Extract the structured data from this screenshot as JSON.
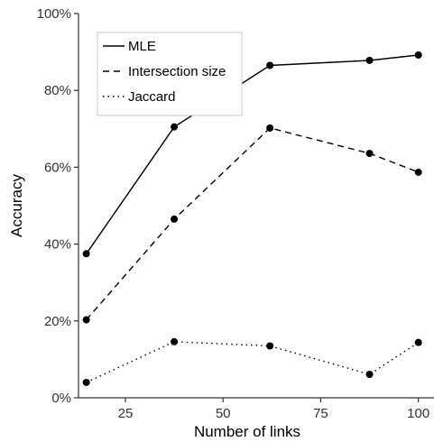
{
  "chart_data": {
    "type": "line",
    "title": "",
    "xlabel": "Number of links",
    "ylabel": "Accuracy",
    "x": [
      15,
      37.5,
      62,
      87.5,
      100
    ],
    "xlim": [
      13,
      104
    ],
    "ylim": [
      0,
      100
    ],
    "xticks": [
      25,
      50,
      75,
      100
    ],
    "xtick_labels": [
      "25",
      "50",
      "75",
      "100"
    ],
    "yticks": [
      0,
      20,
      40,
      60,
      80,
      100
    ],
    "ytick_labels": [
      "0%",
      "20%",
      "40%",
      "60%",
      "80%",
      "100%"
    ],
    "grid": false,
    "legend_position": "top-left",
    "series": [
      {
        "name": "MLE",
        "style": "solid",
        "values": [
          37.5,
          70.5,
          86.5,
          87.8,
          89.2
        ]
      },
      {
        "name": "Intersection size",
        "style": "dashed",
        "values": [
          20.3,
          46.5,
          70.2,
          63.6,
          58.7
        ]
      },
      {
        "name": "Jaccard",
        "style": "dotted",
        "values": [
          4.0,
          14.6,
          13.5,
          6.1,
          14.4
        ]
      }
    ],
    "colors": {
      "line": "#000000",
      "axis": "#333333",
      "legend_border": "#c8c8c8"
    }
  }
}
